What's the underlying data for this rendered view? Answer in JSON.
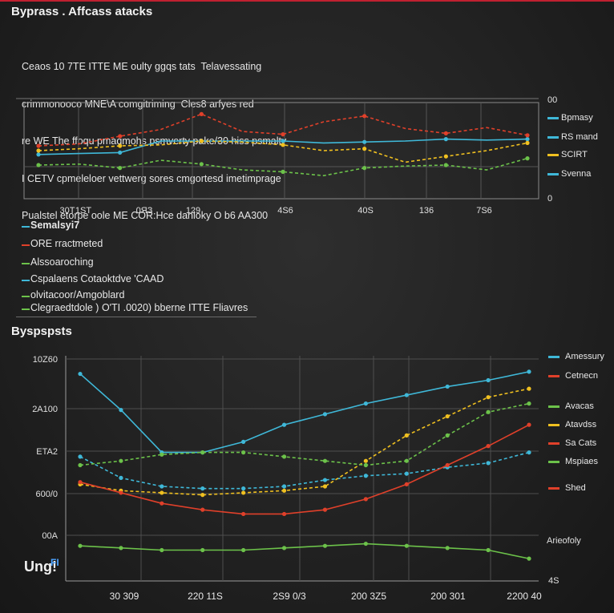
{
  "title": "Byprass . Affcass atacks",
  "description": [
    "Ceaos 10 7TE ITTE ME oulty ggqs tats  Telavessating",
    "crimmonooco MNE\\A comgitriming  Cles8 arfyes red",
    "re WE The ffoqu pmaqmohs psmverty pake/30 hiss psmalty",
    "I CETV cpmeleloer vettwerg sores cmgortesd imetimprage",
    "Pualstel etorpe oole ME COR:Hce danloky O b6 AA300"
  ],
  "key_items": [
    {
      "label": "Semalsyi7",
      "color": "#3fb8d8"
    },
    {
      "label": "ORE rractmeted",
      "color": "#e0402a"
    },
    {
      "label": "Alssoaroching",
      "color": "#6cc24a"
    },
    {
      "label": "Cspalaens Cotaoktdve 'CAAD",
      "color": "#3fb8d8"
    },
    {
      "label": "olvitacoor/Amgoblard",
      "color": "#6cc24a"
    },
    {
      "label": "Clegraedtdole ) O'TI .0020)  bberne ITTE Fliavres",
      "color": "#6cc24a"
    }
  ],
  "section2_title": "Byspspsts",
  "logo": {
    "text": "Ung!",
    "badge": "FI"
  },
  "chart_data": [
    {
      "type": "line",
      "title": "",
      "x_tick_labels": [
        "30T",
        "1ST",
        "0ЯЗ",
        "129",
        "4S6",
        "40S",
        "136",
        "7S6"
      ],
      "right_axis_labels": [
        "00",
        "0"
      ],
      "legend": {
        "placement": "right",
        "entries": [
          {
            "label": "Bpmasy",
            "color": "#3fb8d8"
          },
          {
            "label": "RS mand",
            "color": "#3fb8d8"
          },
          {
            "label": "SCIRT",
            "color": "#f0c020"
          },
          {
            "label": "Svenna",
            "color": "#3fb8d8"
          }
        ]
      },
      "ylim": [
        0,
        100
      ],
      "x": [
        0,
        1,
        2,
        3,
        4,
        5,
        6,
        7,
        8,
        9,
        10,
        11,
        12
      ],
      "series": [
        {
          "color": "#3fb8d8",
          "dash": "",
          "values": [
            46,
            47,
            48,
            60,
            60,
            60,
            60,
            58,
            59,
            60,
            62,
            61,
            62
          ]
        },
        {
          "color": "#f0c020",
          "dash": "4 3",
          "values": [
            50,
            52,
            55,
            56,
            60,
            59,
            56,
            50,
            52,
            38,
            44,
            50,
            58
          ]
        },
        {
          "color": "#e0402a",
          "dash": "4 3",
          "values": [
            55,
            57,
            65,
            72,
            88,
            70,
            67,
            80,
            86,
            73,
            68,
            74,
            66
          ]
        },
        {
          "color": "#6cc24a",
          "dash": "4 3",
          "values": [
            35,
            36,
            32,
            40,
            36,
            30,
            28,
            24,
            32,
            34,
            35,
            30,
            42
          ]
        }
      ]
    },
    {
      "type": "line",
      "title": "",
      "y_tick_labels": [
        "10Z60",
        "2A100",
        "ETA2",
        "600/0",
        "00A"
      ],
      "x_tick_labels": [
        "30 309",
        "220 11S",
        "2S9 0/3",
        "200 3Z5",
        "200 301",
        "2200 40"
      ],
      "ylim": [
        0,
        10
      ],
      "legend": {
        "placement": "right",
        "entries": [
          {
            "label": "Amessury",
            "color": "#3fb8d8"
          },
          {
            "label": "Cetnecn",
            "color": "#e0402a"
          },
          {
            "label": "Avacas",
            "color": "#6cc24a"
          },
          {
            "label": "Atavdss",
            "color": "#f0c020"
          },
          {
            "label": "Sa Cats",
            "color": "#e0402a"
          },
          {
            "label": "Mspiaes",
            "color": "#6cc24a"
          },
          {
            "label": "Shed",
            "color": "#e0402a"
          }
        ]
      },
      "bottom_labels": [
        "Arieofoly",
        "4S"
      ],
      "x": [
        0,
        1,
        2,
        3,
        4,
        5,
        6,
        7,
        8,
        9,
        10,
        11
      ],
      "series": [
        {
          "color": "#3fb8d8",
          "dash": "",
          "values": [
            9.3,
            7.6,
            5.6,
            5.6,
            6.1,
            6.9,
            7.4,
            7.9,
            8.3,
            8.7,
            9.0,
            9.4
          ]
        },
        {
          "color": "#3fb8d8",
          "dash": "4 3",
          "values": [
            5.4,
            4.4,
            4.0,
            3.9,
            3.9,
            4.0,
            4.3,
            4.5,
            4.6,
            4.9,
            5.1,
            5.6
          ]
        },
        {
          "color": "#f0c020",
          "dash": "4 3",
          "values": [
            4.1,
            3.8,
            3.7,
            3.6,
            3.7,
            3.8,
            4.0,
            5.2,
            6.4,
            7.3,
            8.2,
            8.6
          ]
        },
        {
          "color": "#e0402a",
          "dash": "",
          "values": [
            4.2,
            3.7,
            3.2,
            2.9,
            2.7,
            2.7,
            2.9,
            3.4,
            4.1,
            5.0,
            5.9,
            6.9
          ]
        },
        {
          "color": "#6cc24a",
          "dash": "4 3",
          "values": [
            5.0,
            5.2,
            5.5,
            5.6,
            5.6,
            5.4,
            5.2,
            5.0,
            5.2,
            6.4,
            7.5,
            7.9
          ]
        },
        {
          "color": "#6cc24a",
          "dash": "",
          "values": [
            1.2,
            1.1,
            1.0,
            1.0,
            1.0,
            1.1,
            1.2,
            1.3,
            1.2,
            1.1,
            1.0,
            0.6
          ]
        }
      ]
    }
  ]
}
